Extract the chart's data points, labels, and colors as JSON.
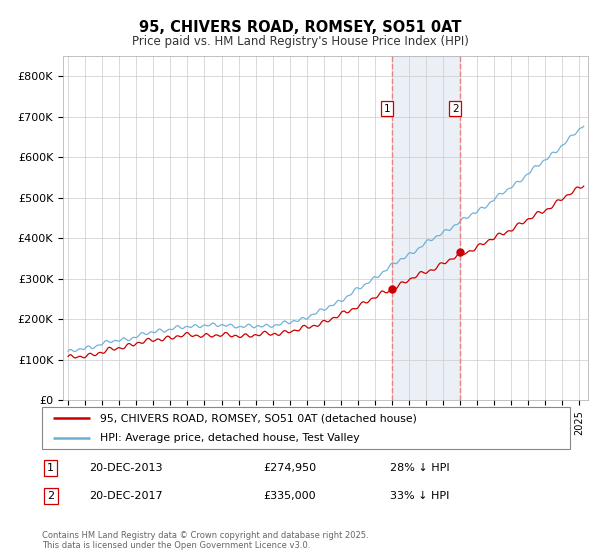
{
  "title": "95, CHIVERS ROAD, ROMSEY, SO51 0AT",
  "subtitle": "Price paid vs. HM Land Registry's House Price Index (HPI)",
  "ylabel_ticks": [
    "£0",
    "£100K",
    "£200K",
    "£300K",
    "£400K",
    "£500K",
    "£600K",
    "£700K",
    "£800K"
  ],
  "ytick_values": [
    0,
    100000,
    200000,
    300000,
    400000,
    500000,
    600000,
    700000,
    800000
  ],
  "ylim": [
    0,
    850000
  ],
  "xlim_start": 1994.7,
  "xlim_end": 2025.5,
  "hpi_color": "#6aaed6",
  "price_color": "#cc0000",
  "marker1_date": 2014.0,
  "marker2_date": 2018.0,
  "marker1_price_val": 274950,
  "marker2_price_val": 335000,
  "marker1_label": "20-DEC-2013",
  "marker2_label": "20-DEC-2017",
  "marker1_price": "£274,950",
  "marker2_price": "£335,000",
  "marker1_hpi": "28% ↓ HPI",
  "marker2_hpi": "33% ↓ HPI",
  "footer": "Contains HM Land Registry data © Crown copyright and database right 2025.\nThis data is licensed under the Open Government Licence v3.0.",
  "legend_line1": "95, CHIVERS ROAD, ROMSEY, SO51 0AT (detached house)",
  "legend_line2": "HPI: Average price, detached house, Test Valley",
  "background_color": "#ffffff",
  "plot_bg_color": "#ffffff",
  "grid_color": "#cccccc",
  "shade_color": "#dce6f1",
  "dashed_color": "#f08080"
}
